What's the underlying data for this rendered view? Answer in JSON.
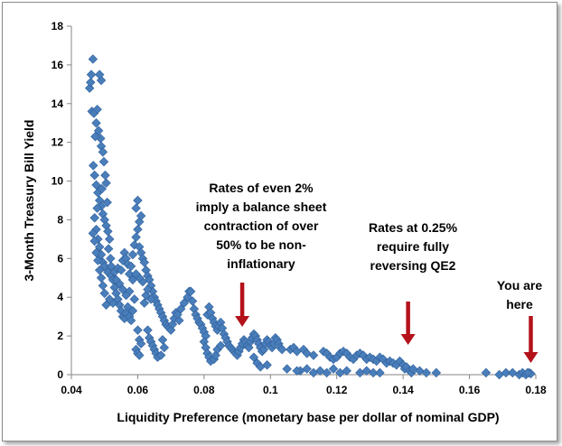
{
  "chart_data": {
    "type": "scatter",
    "title": "",
    "xlabel": "Liquidity Preference (monetary base per dollar of nominal GDP)",
    "ylabel": "3-Month Treasury Bill Yield",
    "xlim": [
      0.04,
      0.18
    ],
    "ylim": [
      0,
      18
    ],
    "x_ticks": [
      "0.04",
      "0.06",
      "0.08",
      "0.1",
      "0.12",
      "0.14",
      "0.16",
      "0.18"
    ],
    "y_ticks": [
      "0",
      "2",
      "4",
      "6",
      "8",
      "10",
      "12",
      "14",
      "16",
      "18"
    ],
    "grid": false,
    "legend": "none",
    "marker": "diamond",
    "colors": {
      "marker": "#4a7ebb",
      "marker_edge": "#2e5f99",
      "arrow": "#b3121b"
    },
    "annotations": [
      {
        "lines": [
          "Rates of even 2%",
          "imply a balance sheet",
          "contraction of over",
          "50% to be non-",
          "inflationary"
        ],
        "arrow_x": 0.0915
      },
      {
        "lines": [
          "Rates at 0.25%",
          "require fully",
          "reversing QE2"
        ],
        "arrow_x": 0.1415
      },
      {
        "lines": [
          "You are",
          "here"
        ],
        "arrow_x": 0.1785
      }
    ],
    "series": [
      {
        "points": [
          [
            0.0465,
            16.3
          ],
          [
            0.046,
            15.5
          ],
          [
            0.0455,
            14.8
          ],
          [
            0.0458,
            15.1
          ],
          [
            0.049,
            15.2
          ],
          [
            0.0485,
            15.5
          ],
          [
            0.0462,
            13.6
          ],
          [
            0.0468,
            13.5
          ],
          [
            0.0475,
            13.0
          ],
          [
            0.0478,
            13.7
          ],
          [
            0.0482,
            12.6
          ],
          [
            0.0488,
            12.2
          ],
          [
            0.049,
            11.8
          ],
          [
            0.0495,
            11.5
          ],
          [
            0.0498,
            11.0
          ],
          [
            0.0502,
            10.3
          ],
          [
            0.0505,
            9.9
          ],
          [
            0.0472,
            12.3
          ],
          [
            0.0466,
            10.8
          ],
          [
            0.047,
            10.3
          ],
          [
            0.0475,
            9.8
          ],
          [
            0.048,
            9.4
          ],
          [
            0.0485,
            9.0
          ],
          [
            0.049,
            8.7
          ],
          [
            0.0495,
            8.3
          ],
          [
            0.05,
            8.0
          ],
          [
            0.0505,
            7.7
          ],
          [
            0.051,
            7.4
          ],
          [
            0.0515,
            7.0
          ],
          [
            0.047,
            8.1
          ],
          [
            0.0475,
            7.5
          ],
          [
            0.048,
            7.0
          ],
          [
            0.0485,
            6.6
          ],
          [
            0.049,
            6.2
          ],
          [
            0.0495,
            5.8
          ],
          [
            0.05,
            5.6
          ],
          [
            0.051,
            5.3
          ],
          [
            0.052,
            5.1
          ],
          [
            0.053,
            5.3
          ],
          [
            0.054,
            5.5
          ],
          [
            0.0478,
            8.6
          ],
          [
            0.0492,
            9.6
          ],
          [
            0.0508,
            8.9
          ],
          [
            0.0512,
            6.5
          ],
          [
            0.0518,
            6.0
          ],
          [
            0.052,
            5.6
          ],
          [
            0.0525,
            4.9
          ],
          [
            0.053,
            4.5
          ],
          [
            0.0535,
            4.2
          ],
          [
            0.054,
            3.9
          ],
          [
            0.0545,
            3.6
          ],
          [
            0.055,
            3.3
          ],
          [
            0.0555,
            3.0
          ],
          [
            0.056,
            2.9
          ],
          [
            0.0565,
            3.2
          ],
          [
            0.057,
            3.5
          ],
          [
            0.0575,
            3.0
          ],
          [
            0.058,
            2.8
          ],
          [
            0.0585,
            3.3
          ],
          [
            0.059,
            3.9
          ],
          [
            0.055,
            5.4
          ],
          [
            0.0555,
            5.9
          ],
          [
            0.056,
            6.3
          ],
          [
            0.0565,
            6.0
          ],
          [
            0.057,
            5.7
          ],
          [
            0.0575,
            5.2
          ],
          [
            0.058,
            5.6
          ],
          [
            0.0585,
            6.2
          ],
          [
            0.059,
            6.7
          ],
          [
            0.0595,
            7.1
          ],
          [
            0.06,
            7.5
          ],
          [
            0.0605,
            7.9
          ],
          [
            0.061,
            8.2
          ],
          [
            0.0595,
            8.6
          ],
          [
            0.06,
            9.0
          ],
          [
            0.0605,
            6.6
          ],
          [
            0.061,
            6.3
          ],
          [
            0.0615,
            6.0
          ],
          [
            0.062,
            5.8
          ],
          [
            0.0625,
            5.4
          ],
          [
            0.063,
            5.1
          ],
          [
            0.0635,
            4.9
          ],
          [
            0.064,
            4.6
          ],
          [
            0.0645,
            4.3
          ],
          [
            0.065,
            4.0
          ],
          [
            0.0655,
            3.8
          ],
          [
            0.066,
            3.6
          ],
          [
            0.0665,
            3.4
          ],
          [
            0.067,
            3.2
          ],
          [
            0.0675,
            3.0
          ],
          [
            0.068,
            2.8
          ],
          [
            0.0685,
            2.6
          ],
          [
            0.069,
            2.5
          ],
          [
            0.0695,
            2.4
          ],
          [
            0.07,
            2.3
          ],
          [
            0.0705,
            2.6
          ],
          [
            0.071,
            2.9
          ],
          [
            0.0715,
            3.2
          ],
          [
            0.072,
            3.1
          ],
          [
            0.0725,
            2.8
          ],
          [
            0.06,
            2.3
          ],
          [
            0.0605,
            1.8
          ],
          [
            0.061,
            1.6
          ],
          [
            0.0595,
            1.3
          ],
          [
            0.06,
            1.1
          ],
          [
            0.0605,
            1.0
          ],
          [
            0.063,
            2.3
          ],
          [
            0.0635,
            1.9
          ],
          [
            0.064,
            1.7
          ],
          [
            0.0645,
            1.5
          ],
          [
            0.065,
            1.3
          ],
          [
            0.0655,
            1.1
          ],
          [
            0.066,
            0.9
          ],
          [
            0.067,
            1.0
          ],
          [
            0.068,
            1.4
          ],
          [
            0.0675,
            1.8
          ],
          [
            0.062,
            3.7
          ],
          [
            0.0625,
            4.1
          ],
          [
            0.063,
            4.4
          ],
          [
            0.064,
            3.9
          ],
          [
            0.0615,
            4.8
          ],
          [
            0.0605,
            5.0
          ],
          [
            0.0595,
            5.2
          ],
          [
            0.0585,
            4.9
          ],
          [
            0.0575,
            4.3
          ],
          [
            0.0565,
            4.1
          ],
          [
            0.0555,
            4.4
          ],
          [
            0.0545,
            4.7
          ],
          [
            0.0535,
            4.9
          ],
          [
            0.0525,
            3.7
          ],
          [
            0.0515,
            3.9
          ],
          [
            0.0505,
            3.6
          ],
          [
            0.05,
            4.2
          ],
          [
            0.0495,
            4.6
          ],
          [
            0.049,
            5.0
          ],
          [
            0.0485,
            5.4
          ],
          [
            0.048,
            5.9
          ],
          [
            0.0475,
            6.3
          ],
          [
            0.047,
            6.9
          ],
          [
            0.0465,
            7.3
          ],
          [
            0.073,
            3.4
          ],
          [
            0.074,
            3.7
          ],
          [
            0.075,
            4.0
          ],
          [
            0.0755,
            4.3
          ],
          [
            0.076,
            4.3
          ],
          [
            0.0765,
            3.8
          ],
          [
            0.077,
            3.4
          ],
          [
            0.0775,
            3.1
          ],
          [
            0.078,
            2.9
          ],
          [
            0.0785,
            2.7
          ],
          [
            0.079,
            2.6
          ],
          [
            0.0795,
            2.4
          ],
          [
            0.08,
            2.2
          ],
          [
            0.0805,
            2.0
          ],
          [
            0.081,
            3.1
          ],
          [
            0.0815,
            3.5
          ],
          [
            0.082,
            3.2
          ],
          [
            0.0825,
            2.9
          ],
          [
            0.083,
            2.7
          ],
          [
            0.0835,
            2.5
          ],
          [
            0.084,
            2.3
          ],
          [
            0.0845,
            2.5
          ],
          [
            0.085,
            2.7
          ],
          [
            0.0855,
            2.4
          ],
          [
            0.086,
            2.1
          ],
          [
            0.0865,
            1.9
          ],
          [
            0.087,
            1.7
          ],
          [
            0.0875,
            1.5
          ],
          [
            0.088,
            1.4
          ],
          [
            0.0885,
            1.3
          ],
          [
            0.089,
            1.2
          ],
          [
            0.0895,
            1.1
          ],
          [
            0.09,
            1.0
          ],
          [
            0.0905,
            1.2
          ],
          [
            0.091,
            1.4
          ],
          [
            0.0915,
            1.6
          ],
          [
            0.092,
            1.8
          ],
          [
            0.0925,
            1.7
          ],
          [
            0.093,
            1.5
          ],
          [
            0.0935,
            1.4
          ],
          [
            0.094,
            1.7
          ],
          [
            0.0945,
            1.9
          ],
          [
            0.095,
            2.1
          ],
          [
            0.0955,
            2.0
          ],
          [
            0.096,
            1.8
          ],
          [
            0.0965,
            1.6
          ],
          [
            0.097,
            1.4
          ],
          [
            0.0975,
            1.2
          ],
          [
            0.098,
            1.3
          ],
          [
            0.0985,
            1.6
          ],
          [
            0.099,
            1.8
          ],
          [
            0.0995,
            1.7
          ],
          [
            0.1,
            1.5
          ],
          [
            0.1005,
            1.4
          ],
          [
            0.101,
            1.6
          ],
          [
            0.1015,
            1.9
          ],
          [
            0.102,
            1.8
          ],
          [
            0.1025,
            1.6
          ],
          [
            0.103,
            1.4
          ],
          [
            0.1035,
            1.3
          ],
          [
            0.08,
            1.7
          ],
          [
            0.0805,
            1.4
          ],
          [
            0.081,
            1.1
          ],
          [
            0.0815,
            0.9
          ],
          [
            0.082,
            0.7
          ],
          [
            0.083,
            0.8
          ],
          [
            0.0835,
            1.0
          ],
          [
            0.084,
            1.3
          ],
          [
            0.085,
            1.5
          ],
          [
            0.095,
            0.9
          ],
          [
            0.096,
            0.6
          ],
          [
            0.097,
            0.4
          ],
          [
            0.099,
            0.5
          ],
          [
            0.105,
            0.3
          ],
          [
            0.106,
            1.3
          ],
          [
            0.107,
            1.4
          ],
          [
            0.108,
            1.2
          ],
          [
            0.11,
            1.3
          ],
          [
            0.111,
            1.1
          ],
          [
            0.113,
            1.0
          ],
          [
            0.116,
            1.2
          ],
          [
            0.117,
            1.1
          ],
          [
            0.118,
            0.9
          ],
          [
            0.119,
            0.8
          ],
          [
            0.12,
            0.9
          ],
          [
            0.121,
            1.1
          ],
          [
            0.122,
            1.2
          ],
          [
            0.123,
            1.1
          ],
          [
            0.124,
            0.9
          ],
          [
            0.125,
            0.8
          ],
          [
            0.126,
            1.0
          ],
          [
            0.127,
            1.1
          ],
          [
            0.128,
            1.0
          ],
          [
            0.129,
            0.8
          ],
          [
            0.13,
            0.9
          ],
          [
            0.131,
            0.8
          ],
          [
            0.132,
            0.7
          ],
          [
            0.133,
            0.9
          ],
          [
            0.134,
            0.8
          ],
          [
            0.135,
            0.6
          ],
          [
            0.136,
            0.7
          ],
          [
            0.137,
            0.6
          ],
          [
            0.138,
            0.5
          ],
          [
            0.139,
            0.7
          ],
          [
            0.14,
            0.5
          ],
          [
            0.1405,
            0.3
          ],
          [
            0.141,
            0.4
          ],
          [
            0.142,
            0.2
          ],
          [
            0.1425,
            0.1
          ],
          [
            0.143,
            0.3
          ],
          [
            0.145,
            0.2
          ],
          [
            0.147,
            0.1
          ],
          [
            0.15,
            0.1
          ],
          [
            0.115,
            0.2
          ],
          [
            0.117,
            0.1
          ],
          [
            0.119,
            0.3
          ],
          [
            0.121,
            0.1
          ],
          [
            0.123,
            0.2
          ],
          [
            0.127,
            0.1
          ],
          [
            0.129,
            0.2
          ],
          [
            0.131,
            0.1
          ],
          [
            0.133,
            0.1
          ],
          [
            0.113,
            0.1
          ],
          [
            0.111,
            0.3
          ],
          [
            0.109,
            0.2
          ],
          [
            0.108,
            0.2
          ],
          [
            0.165,
            0.1
          ],
          [
            0.169,
            0.0
          ],
          [
            0.171,
            0.1
          ],
          [
            0.173,
            0.1
          ],
          [
            0.175,
            0.0
          ],
          [
            0.176,
            0.1
          ],
          [
            0.177,
            0.0
          ],
          [
            0.178,
            0.1
          ],
          [
            0.1785,
            0.05
          ],
          [
            0.1775,
            0.1
          ]
        ]
      }
    ]
  }
}
